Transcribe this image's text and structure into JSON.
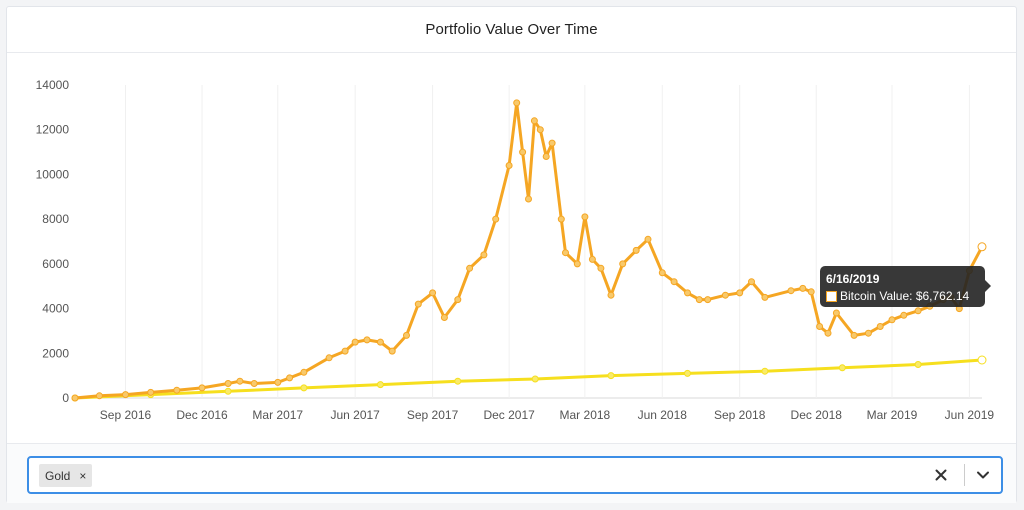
{
  "header": {
    "title": "Portfolio Value Over Time"
  },
  "tooltip": {
    "date": "6/16/2019",
    "label": "Bitcoin Value: $6,762.14"
  },
  "filter": {
    "selected": [
      "Gold"
    ],
    "clear_icon": "close-icon",
    "dropdown_icon": "chevron-down-icon"
  },
  "colors": {
    "bitcoin": "#f5a623",
    "gold": "#f6df1e",
    "accent": "#3c8ee6"
  },
  "chart_data": {
    "type": "line",
    "x_range": [
      "2016-07-03",
      "2019-06-16"
    ],
    "ylim": [
      0,
      14000
    ],
    "yticks": [
      0,
      2000,
      4000,
      6000,
      8000,
      10000,
      12000,
      14000
    ],
    "xticks": [
      "Sep 2016",
      "Dec 2016",
      "Mar 2017",
      "Jun 2017",
      "Sep 2017",
      "Dec 2017",
      "Mar 2018",
      "Jun 2018",
      "Sep 2018",
      "Dec 2018",
      "Mar 2019",
      "Jun 2019"
    ],
    "series": [
      {
        "name": "Bitcoin",
        "x": [
          "2016-07-03",
          "2016-08-01",
          "2016-09-01",
          "2016-10-01",
          "2016-11-01",
          "2016-12-01",
          "2017-01-01",
          "2017-01-15",
          "2017-02-01",
          "2017-03-01",
          "2017-03-15",
          "2017-04-01",
          "2017-05-01",
          "2017-05-20",
          "2017-06-01",
          "2017-06-15",
          "2017-07-01",
          "2017-07-15",
          "2017-08-01",
          "2017-08-15",
          "2017-09-01",
          "2017-09-15",
          "2017-10-01",
          "2017-10-15",
          "2017-11-01",
          "2017-11-15",
          "2017-12-01",
          "2017-12-10",
          "2017-12-17",
          "2017-12-24",
          "2017-12-31",
          "2018-01-07",
          "2018-01-14",
          "2018-01-21",
          "2018-02-01",
          "2018-02-06",
          "2018-02-20",
          "2018-03-01",
          "2018-03-10",
          "2018-03-20",
          "2018-04-01",
          "2018-04-15",
          "2018-05-01",
          "2018-05-15",
          "2018-06-01",
          "2018-06-15",
          "2018-07-01",
          "2018-07-15",
          "2018-07-25",
          "2018-08-15",
          "2018-09-01",
          "2018-09-15",
          "2018-10-01",
          "2018-11-01",
          "2018-11-15",
          "2018-11-25",
          "2018-12-05",
          "2018-12-15",
          "2018-12-25",
          "2019-01-15",
          "2019-02-01",
          "2019-02-15",
          "2019-03-01",
          "2019-03-15",
          "2019-04-01",
          "2019-04-15",
          "2019-05-01",
          "2019-05-10",
          "2019-05-20",
          "2019-06-01",
          "2019-06-16"
        ],
        "values": [
          0,
          100,
          150,
          250,
          350,
          450,
          650,
          750,
          650,
          700,
          900,
          1150,
          1800,
          2100,
          2500,
          2600,
          2500,
          2100,
          2800,
          4200,
          4700,
          3600,
          4400,
          5800,
          6400,
          8000,
          10400,
          13200,
          11000,
          8900,
          12400,
          12000,
          10800,
          11400,
          8000,
          6500,
          6000,
          8100,
          6200,
          5800,
          4600,
          6000,
          6600,
          7100,
          5600,
          5200,
          4700,
          4400,
          4400,
          4600,
          4700,
          5200,
          4500,
          4800,
          4900,
          4750,
          3200,
          2900,
          3800,
          2800,
          2900,
          3200,
          3500,
          3700,
          3900,
          4100,
          4400,
          4500,
          4000,
          5700,
          6762.14
        ]
      },
      {
        "name": "Gold",
        "x": [
          "2016-07-03",
          "2016-10-01",
          "2017-01-01",
          "2017-04-01",
          "2017-07-01",
          "2017-10-01",
          "2018-01-01",
          "2018-04-01",
          "2018-07-01",
          "2018-10-01",
          "2019-01-01",
          "2019-04-01",
          "2019-06-16"
        ],
        "values": [
          0,
          150,
          300,
          450,
          600,
          750,
          850,
          1000,
          1100,
          1200,
          1350,
          1500,
          1700
        ]
      }
    ]
  }
}
